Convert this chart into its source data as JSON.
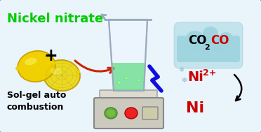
{
  "bg_color": "#eaf4fb",
  "border_color": "#4a7abf",
  "title_text": "Nickel nitrate",
  "title_color": "#00cc00",
  "subtitle_line1": "Sol-gel auto",
  "subtitle_line2": "combustion",
  "subtitle_color": "#000000",
  "red_color": "#cc0000",
  "cloud_color": "#9dd4e0",
  "beaker_liquid_color": "#66dd88",
  "hotplate_body_color": "#ccc9be",
  "hotplate_platform_color": "#dddad0",
  "lemon_yellow": "#f0d000",
  "lemon_edge": "#c8a000",
  "lemon_inner": "#e8e040",
  "arrow_color": "#cc2200",
  "lightning_color": "#1010dd",
  "plus_color": "#000000",
  "snowflake_color": "#88bbcc",
  "beaker_color": "#ccddee",
  "black": "#000000",
  "green_btn": "#66aa44",
  "red_btn": "#ee2222",
  "display_color": "#ccccaa"
}
